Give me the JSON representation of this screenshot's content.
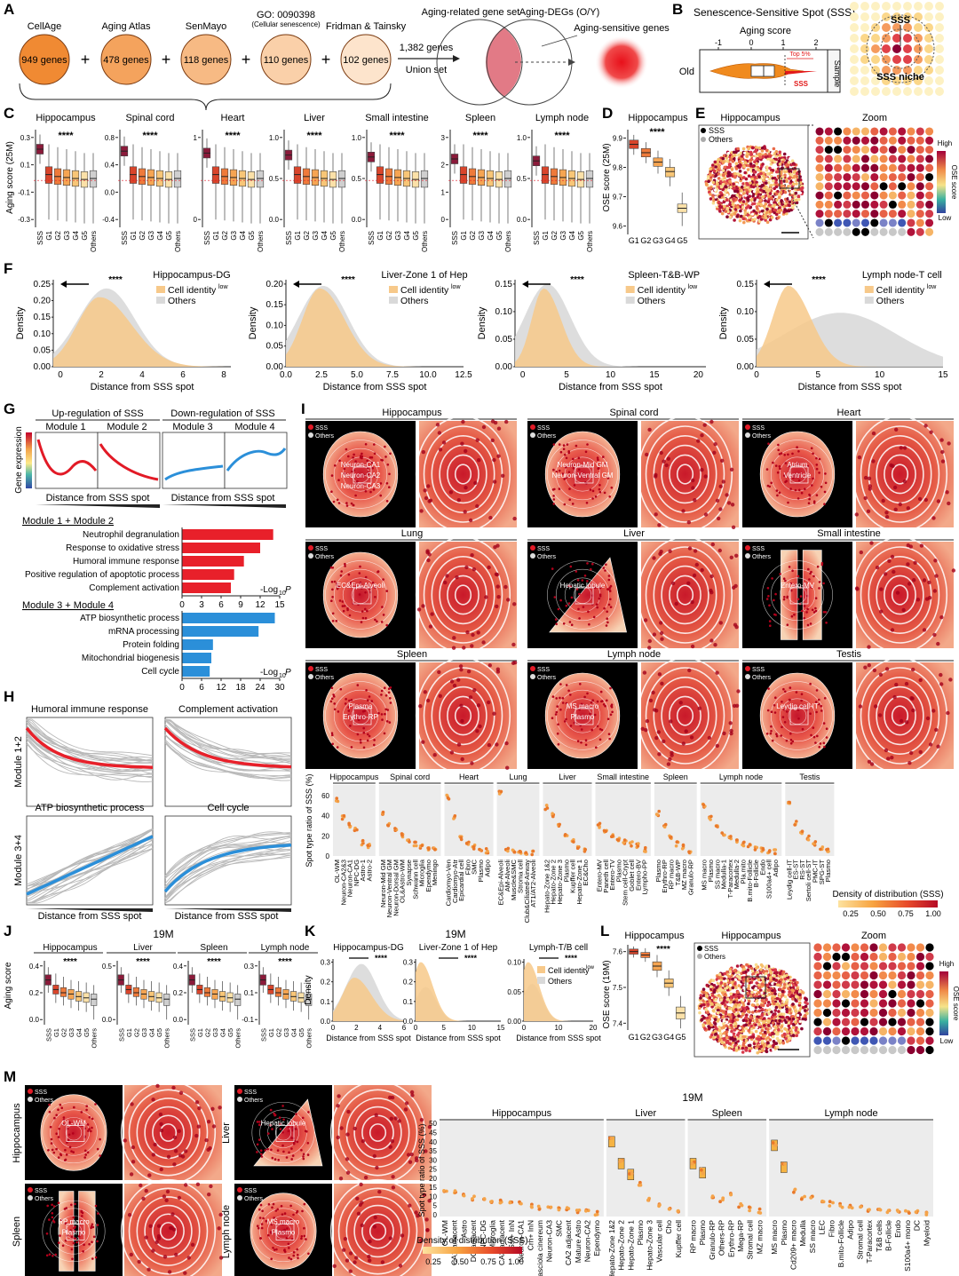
{
  "panel_letters": [
    "A",
    "B",
    "C",
    "D",
    "E",
    "F",
    "G",
    "H",
    "I",
    "J",
    "K",
    "L",
    "M"
  ],
  "colors": {
    "sss": "#8b1a3a",
    "g1": "#d9452b",
    "g2": "#ef7a3a",
    "g3": "#f6a552",
    "g4": "#f8c677",
    "g5": "#fbe1a8",
    "others": "#cfcfcf",
    "orange": "#f19a2b",
    "red": "#e8202a",
    "blue": "#2b8fd9"
  },
  "panelA": {
    "sources": [
      {
        "name": "CellAge",
        "count": "949 genes"
      },
      {
        "name": "Aging Atlas",
        "count": "478 genes"
      },
      {
        "name": "SenMayo",
        "count": "118 genes"
      },
      {
        "name": "GO: 0090398",
        "sub": "(Cellular senescence)",
        "count": "110 genes"
      },
      {
        "name": "Fridman & Tainsky",
        "count": "102 genes"
      }
    ],
    "plus": "+",
    "union_count": "1,382 genes",
    "union_label": "Union set",
    "venn_left": "Aging-related gene set",
    "venn_right": "Aging-DEGs (O/Y)",
    "result": "Aging-sensitive genes"
  },
  "panelB": {
    "title": "Senescence-Sensitive Spot (SSS)",
    "axis_title": "Aging score",
    "ticks": [
      "-1",
      "0",
      "1",
      "2"
    ],
    "row_label": "Old",
    "top_label": "Top 5%",
    "sss_label": "SSS",
    "sample_label": "Sample",
    "grid_sss": "SSS",
    "grid_niche": "SSS niche"
  },
  "panelC": {
    "ylabel": "Aging score (25M)",
    "stars": "****",
    "categories": [
      "SSS",
      "G1",
      "G2",
      "G3",
      "G4",
      "G5",
      "Others"
    ],
    "tissues": [
      {
        "name": "Hippocampus",
        "ticks": [
          "0.3",
          "0.1",
          "-0.1",
          "-0.3"
        ]
      },
      {
        "name": "Spinal cord",
        "ticks": [
          "0.8",
          "0.4",
          "0.0",
          "-0.4"
        ]
      },
      {
        "name": "Heart",
        "ticks": [
          "1",
          "0"
        ]
      },
      {
        "name": "Liver",
        "ticks": [
          "1.0",
          "0.5",
          "0.0"
        ]
      },
      {
        "name": "Small intestine",
        "ticks": [
          "1.0",
          "0.5",
          "0.0"
        ]
      },
      {
        "name": "Spleen",
        "ticks": [
          "3",
          "2",
          "1",
          "0"
        ]
      },
      {
        "name": "Lymph node",
        "ticks": [
          "1.0",
          "0.5",
          "0.0"
        ]
      }
    ]
  },
  "panelD": {
    "title": "Hippocampus",
    "ylabel": "OSE score (25M)",
    "stars": "****",
    "ticks": [
      "9.9",
      "9.8",
      "9.7",
      "9.6"
    ],
    "categories": [
      "G1",
      "G2",
      "G3",
      "G4",
      "G5"
    ]
  },
  "panelE": {
    "title": "Hippocampus",
    "zoom": "Zoom",
    "legend": [
      "SSS",
      "Others"
    ],
    "scale_title": "OSE score",
    "high": "High",
    "low": "Low"
  },
  "panelF": {
    "xlabel": "Distance from SSS spot",
    "ylabel": "Density",
    "stars": "****",
    "legend_cell": "Cell identity",
    "legend_sup": "low",
    "legend_others": "Others",
    "plots": [
      {
        "title": "Hippocampus-DG",
        "yticks": [
          "0.25",
          "0.20",
          "0.15",
          "0.10",
          "0.05",
          "0.00"
        ],
        "xticks": [
          "0",
          "2",
          "4",
          "6",
          "8"
        ]
      },
      {
        "title": "Liver-Zone 1 of Hep",
        "yticks": [
          "0.20",
          "0.15",
          "0.10",
          "0.05",
          "0.00"
        ],
        "xticks": [
          "0.0",
          "2.5",
          "5.0",
          "7.5",
          "10.0",
          "12.5"
        ]
      },
      {
        "title": "Spleen-T&B-WP",
        "yticks": [
          "0.15",
          "0.10",
          "0.05",
          "0.00"
        ],
        "xticks": [
          "0",
          "5",
          "10",
          "15",
          "20"
        ]
      },
      {
        "title": "Lymph node-T cell",
        "yticks": [
          "0.15",
          "0.10",
          "0.05",
          "0.00"
        ],
        "xticks": [
          "0",
          "5",
          "10",
          "15"
        ]
      }
    ]
  },
  "panelG": {
    "up": "Up-regulation of SSS",
    "down": "Down-regulation of SSS",
    "modules": [
      "Module 1",
      "Module 2",
      "Module 3",
      "Module 4"
    ],
    "ylabel": "Gene expression",
    "xlabel": "Distance from SSS spot",
    "group1": "Module 1 + Module 2",
    "group2": "Module 3 + Module 4",
    "axis_label": "-Log",
    "axis_sub": "10",
    "axis_p": "P",
    "terms_up": [
      {
        "term": "Neutrophil degranulation",
        "value": 14
      },
      {
        "term": "Response to oxidative stress",
        "value": 12
      },
      {
        "term": "Humoral immune response",
        "value": 9.5
      },
      {
        "term": "Positive regulation of apoptotic process",
        "value": 8
      },
      {
        "term": "Complement activation",
        "value": 7.5
      }
    ],
    "ticks_up": [
      "0",
      "3",
      "6",
      "9",
      "12",
      "15"
    ],
    "terms_down": [
      {
        "term": "ATP biosynthetic process",
        "value": 28.5
      },
      {
        "term": "mRNA processing",
        "value": 23.5
      },
      {
        "term": "Protein folding",
        "value": 9.5
      },
      {
        "term": "Mitochondrial biogenesis",
        "value": 9
      },
      {
        "term": "Cell cycle",
        "value": 8.5
      }
    ],
    "ticks_down": [
      "0",
      "6",
      "12",
      "18",
      "24",
      "30"
    ]
  },
  "panelH": {
    "titles": [
      "Humoral immune response",
      "Complement activation",
      "ATP biosynthetic process",
      "Cell cycle"
    ],
    "rows": [
      "Module 1+2",
      "Module 3+4"
    ],
    "xlabel": "Distance from SSS spot"
  },
  "panelI": {
    "legend": [
      "SSS",
      "Others"
    ],
    "tissues": [
      {
        "name": "Hippocampus",
        "labels": [
          "Neuron-CA1",
          "Neuron-CA2",
          "Neuron-CA3"
        ]
      },
      {
        "name": "Spinal cord",
        "labels": [
          "Neuron-Mid GM",
          "Neuron-Ventral GM"
        ]
      },
      {
        "name": "Heart",
        "labels": [
          "Atrium",
          "Ventricle"
        ]
      },
      {
        "name": "Lung",
        "labels": [
          "EC&Epi-Alveoli"
        ]
      },
      {
        "name": "Liver",
        "labels": [
          "Hepatic lobule"
        ]
      },
      {
        "name": "Small intestine",
        "labels": [
          "Entero-MV"
        ]
      },
      {
        "name": "Spleen",
        "labels": [
          "Plasma",
          "Erythro-RP"
        ]
      },
      {
        "name": "Lymph node",
        "labels": [
          "MS macro",
          "Plasmo"
        ]
      },
      {
        "name": "Testis",
        "labels": [
          "Leydig cell-IT"
        ]
      }
    ],
    "strip_ylabel": "Spot type ratio of SSS (%)",
    "strip_yticks": [
      "60",
      "40",
      "20",
      "0"
    ],
    "strip_groups": [
      {
        "name": "Hippocampus",
        "cells": [
          "OL-WM",
          "Neuron-CA2&3",
          "Neuron-CA1",
          "NPC-DG",
          "Astro-1",
          "Astro-2"
        ],
        "values": [
          55,
          38,
          30,
          26,
          13,
          10
        ]
      },
      {
        "name": "Spinal cord",
        "cells": [
          "Neuron-Mid GM",
          "Neuron-Ventral GM",
          "Neuron-Dorsal GM",
          "OL&Astro-WM",
          "Synapse",
          "Schwann cell",
          "Microglia",
          "Ependymo",
          "Meningo"
        ],
        "values": [
          42,
          30,
          26,
          20,
          16,
          12,
          10,
          8,
          6
        ]
      },
      {
        "name": "Heart",
        "cells": [
          "Cardiomyo-Ven",
          "Cardiomyo-Atr",
          "Epicardial cell",
          "Fibro",
          "SMC",
          "Plasmo",
          "Adipo"
        ],
        "values": [
          58,
          38,
          18,
          12,
          9,
          7,
          5
        ]
      },
      {
        "name": "Lung",
        "cells": [
          "EC&Epi-Alveoli",
          "AM-Alveoli",
          "Muscle&SMC",
          "Stroma cell",
          "Club&Ciliated-Airway",
          "AT1/AT2-Alveoli"
        ],
        "values": [
          62,
          6,
          5,
          4,
          3,
          3
        ]
      },
      {
        "name": "Liver",
        "cells": [
          "Hepato-Zone 1&2",
          "Hepato-Zone 2",
          "Hepato-Zone 3",
          "Plasmo",
          "Kupffer cell",
          "Hepato-Zone 1",
          "EC&Cho"
        ],
        "values": [
          48,
          40,
          30,
          20,
          14,
          8,
          6
        ]
      },
      {
        "name": "Small intestine",
        "cells": [
          "Entero-MV",
          "Paneth cell",
          "Entero-TV",
          "Plasmo",
          "Stem cell-Crypt",
          "Goblet cell",
          "Entero-BV",
          "Lympho-PP"
        ],
        "values": [
          30,
          24,
          20,
          16,
          14,
          12,
          10,
          6
        ]
      },
      {
        "name": "Spleen",
        "cells": [
          "Plasmo",
          "Erythro-RP",
          "RP macro",
          "T&B-WP",
          "MZ macro",
          "Granulo-RP"
        ],
        "values": [
          42,
          30,
          18,
          12,
          9,
          5
        ]
      },
      {
        "name": "Lymph node",
        "cells": [
          "MS macro",
          "Plasmo",
          "SS macro",
          "Medulla-1",
          "T-Paracortex",
          "Medulla-2",
          "Pla.mito",
          "B.mito-Follicle",
          "B-Follicle",
          "Endo",
          "S100a4+ cell",
          "Adipo"
        ],
        "values": [
          50,
          38,
          28,
          22,
          18,
          14,
          12,
          10,
          8,
          6,
          5,
          4
        ]
      },
      {
        "name": "Testis",
        "cells": [
          "Leydig cell-IT",
          "ES-ST",
          "RS-ST",
          "Sertoli cell-ST",
          "PMC-IT",
          "SPG-ST",
          "Plasmo"
        ],
        "values": [
          52,
          32,
          24,
          18,
          12,
          8,
          5
        ]
      }
    ],
    "density_title": "Density of distribution (SSS)",
    "density_ticks": [
      "0.25",
      "0.50",
      "0.75",
      "1.00"
    ]
  },
  "panelJ": {
    "header": "19M",
    "ylabel": "Aging score",
    "stars": "****",
    "categories": [
      "SSS",
      "G1",
      "G2",
      "G3",
      "G4",
      "G5",
      "Others"
    ],
    "tissues": [
      {
        "name": "Hippocampus",
        "ticks": [
          "0.4",
          "0.2",
          "0.0"
        ]
      },
      {
        "name": "Liver",
        "ticks": [
          "0.5",
          "0.0"
        ]
      },
      {
        "name": "Spleen",
        "ticks": [
          "0.4",
          "0.2",
          "0.0"
        ]
      },
      {
        "name": "Lymph node",
        "ticks": [
          "0.3",
          "0.1",
          "-0.1"
        ]
      }
    ]
  },
  "panelK": {
    "header": "19M",
    "xlabel": "Distance from SSS spot",
    "ylabel": "Density",
    "stars": "****",
    "legend_cell": "Cell identity",
    "legend_sup": "low",
    "legend_others": "Others",
    "plots": [
      {
        "title": "Hippocampus-DG",
        "yticks": [
          "0.3",
          "0.2",
          "0.1",
          "0.0"
        ],
        "xticks": [
          "0",
          "2",
          "4",
          "6"
        ]
      },
      {
        "title": "Liver-Zone 1 of Hep",
        "yticks": [
          "0.3",
          "0.2",
          "0.1",
          "0.0"
        ],
        "xticks": [
          "0",
          "5",
          "10",
          "15"
        ]
      },
      {
        "title": "Lymph-T/B cell",
        "yticks": [
          "0.10",
          "0.05",
          "0.00"
        ],
        "xticks": [
          "0",
          "10",
          "20"
        ]
      }
    ]
  },
  "panelL": {
    "title": "Hippocampus",
    "ylabel": "OSE score (19M)",
    "stars": "****",
    "ticks": [
      "7.6",
      "7.5",
      "7.4"
    ],
    "categories": [
      "G1",
      "G2",
      "G3",
      "G4",
      "G5"
    ],
    "map_title": "Hippocampus",
    "zoom": "Zoom",
    "legend": [
      "SSS",
      "Others"
    ],
    "scale_title": "OSE score",
    "high": "High",
    "low": "Low"
  },
  "panelM": {
    "header": "19M",
    "legend": [
      "SSS",
      "Others"
    ],
    "tissues": [
      {
        "name": "Hippocampus",
        "labels": [
          "OL-WM"
        ]
      },
      {
        "name": "Liver",
        "labels": [
          "Hepatic lobule"
        ]
      },
      {
        "name": "Spleen",
        "labels": [
          "RP macro",
          "Plasmo"
        ]
      },
      {
        "name": "Lymph node",
        "labels": [
          "MS macro",
          "Plasmo"
        ]
      }
    ],
    "strip_ylabel": "Spot type ratio of SSS (%)",
    "strip_yticks": [
      "50",
      "45",
      "40",
      "35",
      "30",
      "25",
      "20",
      "15",
      "10",
      "5",
      "0"
    ],
    "strip_groups": [
      {
        "name": "Hippocampus",
        "cells": [
          "OL-WM",
          "CA1 adjacent",
          "Astro",
          "DG adjacent",
          "NPC-DG",
          "Microglia",
          "CA3 adjacent",
          "Sst+ InN",
          "Neuron-CA1",
          "Crh+ InN",
          "Fasciola cinereum",
          "Neuron-CA3",
          "SMC",
          "CA2 adjacent",
          "Mature Astro",
          "Neuron-CA2",
          "Ependymo"
        ],
        "values": [
          14,
          13,
          11,
          10,
          9,
          8,
          8,
          7,
          7,
          6,
          5,
          5,
          4,
          4,
          3,
          3,
          2
        ]
      },
      {
        "name": "Liver",
        "cells": [
          "Hepato-Zone 1&2",
          "Hepato-Zone 2",
          "Hepato-Zone 1",
          "Plasmo",
          "Hepato-Zone 3",
          "Vascular cell",
          "Cho",
          "Kupffer cell"
        ],
        "values": [
          42,
          30,
          24,
          18,
          10,
          6,
          4,
          3
        ]
      },
      {
        "name": "Spleen",
        "cells": [
          "RP macro",
          "Plasmo",
          "Granulo-RP",
          "Others-RP",
          "Erythro-RP",
          "Mega-RP",
          "Stromal cell",
          "MZ macro"
        ],
        "values": [
          30,
          25,
          10,
          9,
          12,
          6,
          4,
          3
        ]
      },
      {
        "name": "Lymph node",
        "cells": [
          "MS macro",
          "Plasmo",
          "Cd209+ macro",
          "Medulla",
          "SS macro",
          "LEC",
          "Fibro",
          "B.mito-Follicle",
          "Adipo",
          "Stromal cell",
          "T-Paracortex",
          "T&B cells",
          "B-Follicle",
          "Endo",
          "S100a4+ mono",
          "DC",
          "Myeloid"
        ],
        "values": [
          40,
          28,
          14,
          10,
          10,
          8,
          7,
          6,
          5,
          5,
          4,
          4,
          3,
          3,
          3,
          2,
          2
        ]
      }
    ],
    "density_title": "Density of distribution (SSS)",
    "density_ticks": [
      "0.25",
      "0.50",
      "0.75",
      "1.00"
    ]
  }
}
